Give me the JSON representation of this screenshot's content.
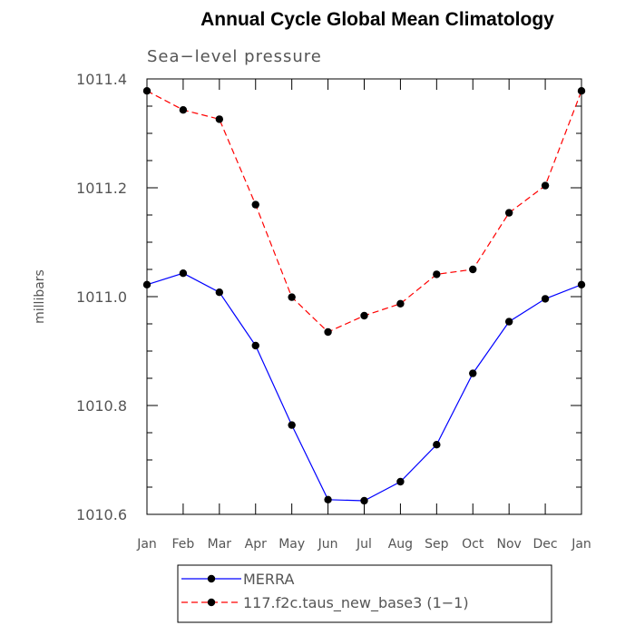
{
  "chart_data": {
    "type": "line",
    "title": "Annual Cycle Global Mean Climatology",
    "subtitle": "Sea−level pressure",
    "xlabel": "",
    "ylabel": "millibars",
    "categories": [
      "Jan",
      "Feb",
      "Mar",
      "Apr",
      "May",
      "Jun",
      "Jul",
      "Aug",
      "Sep",
      "Oct",
      "Nov",
      "Dec",
      "Jan"
    ],
    "ylim": [
      1010.6,
      1011.4
    ],
    "y_ticks": [
      1010.6,
      1010.8,
      1011.0,
      1011.2,
      1011.4
    ],
    "y_tick_labels": [
      "1010.6",
      "1010.8",
      "1011.0",
      "1011.2",
      "1011.4"
    ],
    "grid": false,
    "legend_position": "bottom",
    "series": [
      {
        "name": "MERRA",
        "color": "#0000ff",
        "style": "solid",
        "values": [
          1011.022,
          1011.043,
          1011.008,
          1010.91,
          1010.764,
          1010.627,
          1010.625,
          1010.66,
          1010.728,
          1010.859,
          1010.954,
          1010.996,
          1011.022
        ]
      },
      {
        "name": "117.f2c.taus_new_base3 (1−1)",
        "color": "#ff0000",
        "style": "dashed",
        "values": [
          1011.378,
          1011.343,
          1011.326,
          1011.169,
          1010.999,
          1010.935,
          1010.965,
          1010.987,
          1011.041,
          1011.05,
          1011.154,
          1011.204,
          1011.378
        ]
      }
    ]
  }
}
